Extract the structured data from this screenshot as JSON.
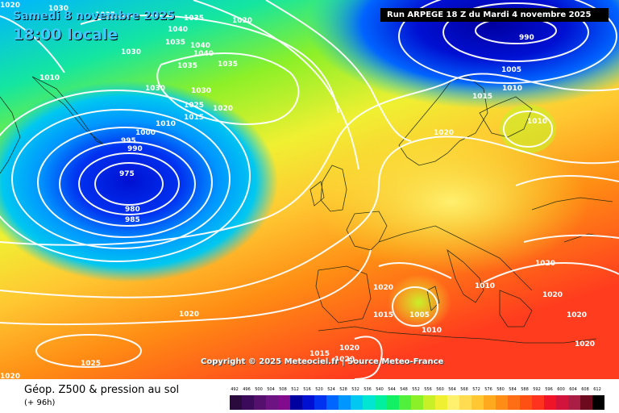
{
  "header": {
    "date": "Samedi 8 novembre 2025",
    "time": "18:00 locale",
    "run": "Run ARPEGE 18 Z du Mardi 4 novembre 2025"
  },
  "copyright": "Copyright © 2025 Meteociel.fr | Source Meteo-France",
  "footer": {
    "title": "Géop. Z500 & pression au sol",
    "subtitle": "(+ 96h)"
  },
  "legend": {
    "values": [
      "492",
      "496",
      "500",
      "504",
      "508",
      "512",
      "516",
      "520",
      "524",
      "528",
      "532",
      "536",
      "540",
      "544",
      "548",
      "552",
      "556",
      "560",
      "564",
      "568",
      "572",
      "576",
      "580",
      "584",
      "588",
      "592",
      "596",
      "600",
      "604",
      "608",
      "612"
    ],
    "colors": [
      "#2a0a3c",
      "#3c0a5a",
      "#55106e",
      "#6e1482",
      "#820a8c",
      "#0000a0",
      "#0010d2",
      "#0032f0",
      "#0064ff",
      "#0096ff",
      "#00c8f0",
      "#00e6d2",
      "#00f0a0",
      "#14f064",
      "#50f03c",
      "#8cf028",
      "#c8f028",
      "#f0f032",
      "#fff06e",
      "#ffdc50",
      "#ffc832",
      "#ffaa1e",
      "#ff8c14",
      "#ff6e14",
      "#ff5014",
      "#ff321e",
      "#f01428",
      "#d2143c",
      "#aa1e46",
      "#6e0a1e",
      "#000000"
    ]
  },
  "pressure_labels": [
    {
      "text": "1035"
    },
    {
      "text": "1030"
    },
    {
      "text": "1035"
    },
    {
      "text": "1040"
    },
    {
      "text": "1035"
    },
    {
      "text": "1040"
    },
    {
      "text": "1040"
    },
    {
      "text": "1035"
    },
    {
      "text": "1035"
    },
    {
      "text": "1030"
    },
    {
      "text": "1010"
    },
    {
      "text": "1030"
    },
    {
      "text": "1030"
    },
    {
      "text": "1025"
    },
    {
      "text": "1020"
    },
    {
      "text": "1015"
    },
    {
      "text": "1010"
    },
    {
      "text": "1000"
    },
    {
      "text": "995"
    },
    {
      "text": "990"
    },
    {
      "text": "975"
    },
    {
      "text": "980"
    },
    {
      "text": "985"
    },
    {
      "text": "990"
    },
    {
      "text": "1005"
    },
    {
      "text": "1010"
    },
    {
      "text": "1015"
    },
    {
      "text": "1010"
    },
    {
      "text": "1020"
    },
    {
      "text": "1020"
    },
    {
      "text": "1020"
    },
    {
      "text": "1010"
    },
    {
      "text": "1015"
    },
    {
      "text": "1005"
    },
    {
      "text": "1010"
    },
    {
      "text": "1020"
    },
    {
      "text": "1020"
    },
    {
      "text": "1020"
    },
    {
      "text": "1020"
    },
    {
      "text": "1020"
    },
    {
      "text": "1025"
    },
    {
      "text": "1020"
    },
    {
      "text": "1015"
    },
    {
      "text": "1015"
    },
    {
      "text": "1020"
    },
    {
      "text": "1020"
    },
    {
      "text": "1020"
    }
  ]
}
